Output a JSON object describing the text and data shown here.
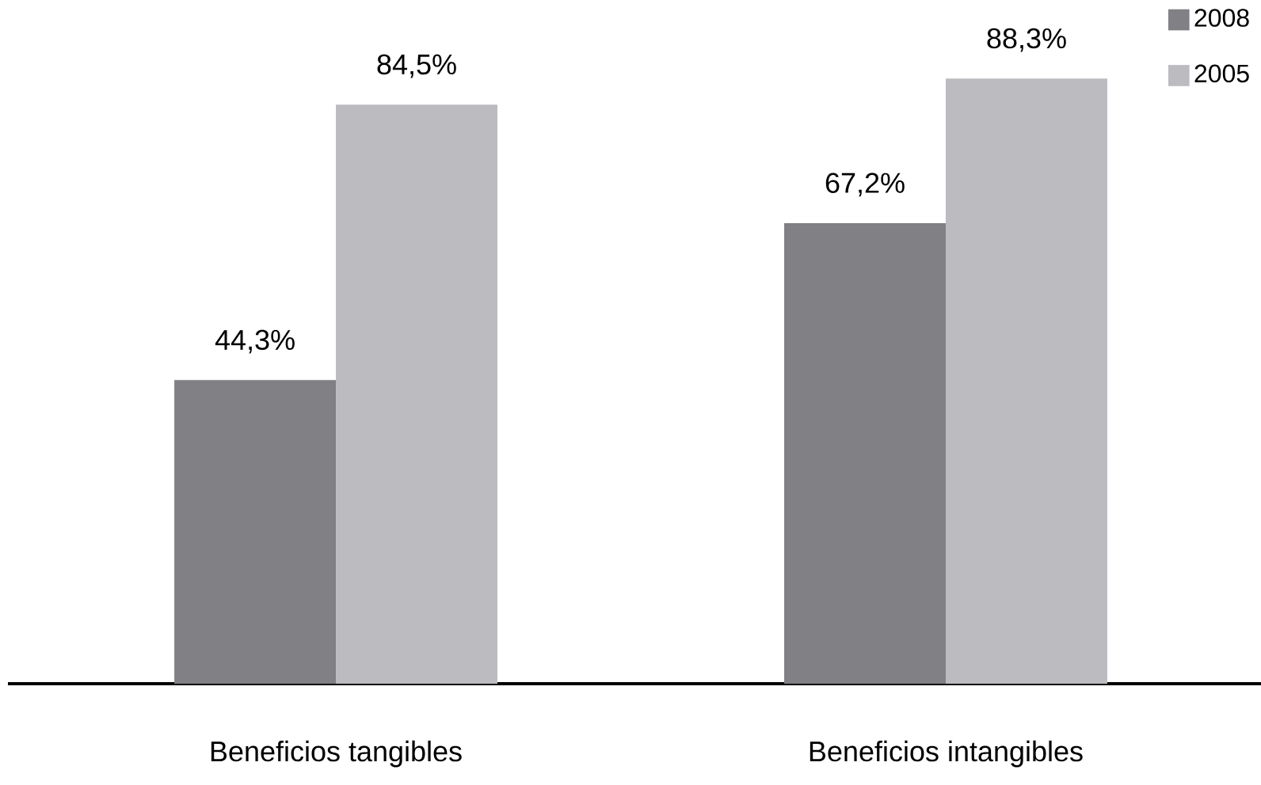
{
  "chart_data": {
    "type": "bar",
    "categories": [
      "Beneficios tangibles",
      "Beneficios intangibles"
    ],
    "series": [
      {
        "name": "2008",
        "color": "#808085",
        "values": [
          44.3,
          67.2
        ],
        "value_labels": [
          "44,3%",
          "67,2%"
        ]
      },
      {
        "name": "2005",
        "color": "#bcbcc0",
        "values": [
          84.5,
          88.3
        ],
        "value_labels": [
          "84,5%",
          "88,3%"
        ]
      }
    ],
    "legend": "top right"
  }
}
